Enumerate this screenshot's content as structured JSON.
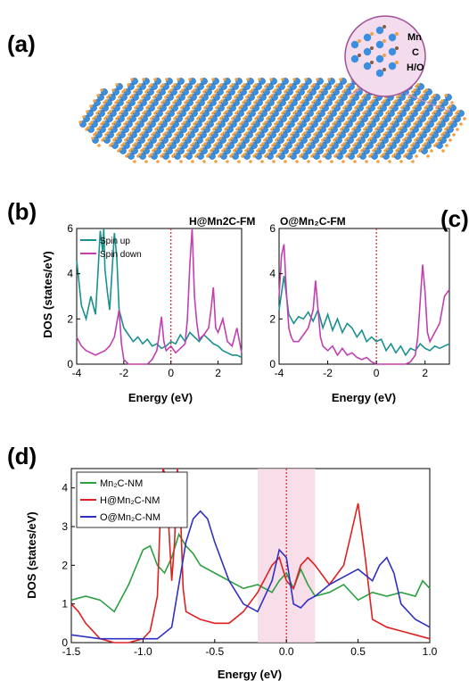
{
  "panel_labels": {
    "a": "(a)",
    "b": "(b)",
    "c": "(c)",
    "d": "(d)"
  },
  "inset_labels": {
    "mn": "Mn",
    "c": "C",
    "ho": "H/O"
  },
  "colors": {
    "mn_atom": "#3a8fe0",
    "c_atom": "#8a5a3a",
    "ho_atom": "#f0a040",
    "spin_up": "#1a9090",
    "spin_down": "#c040b0",
    "mn2c": "#2aa040",
    "h_mn2c": "#e02020",
    "o_mn2c": "#3030c0",
    "fermi_line": "#e02020",
    "fermi_band": "#f4d0e0",
    "inset_bg": "#f2dcee"
  },
  "panel_b": {
    "title": "H@Mn2C-FM"
  },
  "panel_c": {
    "title": "O@Mn₂C-FM"
  },
  "panel_d": {
    "legend": [
      "Mn₂C-NM",
      "H@Mn₂C-NM",
      "O@Mn₂C-NM"
    ]
  },
  "chart_data": [
    {
      "type": "line",
      "title": "H@Mn2C-FM",
      "xlabel": "Energy (eV)",
      "ylabel": "DOS (states/eV)",
      "xlim": [
        -4,
        3
      ],
      "ylim": [
        0,
        6
      ],
      "xticks": [
        "-4",
        "-2",
        "0",
        "2"
      ],
      "yticks": [
        "0",
        "2",
        "4",
        "6"
      ],
      "legend": "top-left",
      "series": [
        {
          "name": "Spin up",
          "x": [
            -4,
            -3.8,
            -3.6,
            -3.4,
            -3.2,
            -3.1,
            -3.0,
            -2.9,
            -2.85,
            -2.8,
            -2.7,
            -2.6,
            -2.4,
            -2.3,
            -2.2,
            -2.0,
            -1.8,
            -1.6,
            -1.4,
            -1.2,
            -1.0,
            -0.8,
            -0.6,
            -0.4,
            -0.2,
            0,
            0.2,
            0.4,
            0.6,
            0.8,
            1.0,
            1.2,
            1.4,
            1.6,
            1.8,
            2.0,
            2.2,
            2.4,
            2.6,
            2.8,
            3.0
          ],
          "y": [
            4.6,
            2.6,
            2.0,
            3.0,
            2.2,
            4.0,
            5.9,
            5.0,
            6.0,
            4.2,
            3.2,
            2.4,
            5.8,
            4.8,
            2.4,
            1.6,
            1.3,
            1.0,
            1.2,
            0.9,
            1.1,
            0.8,
            0.9,
            0.7,
            0.8,
            1.0,
            0.9,
            1.3,
            1.0,
            1.4,
            1.2,
            1.0,
            1.3,
            1.1,
            0.9,
            0.8,
            0.6,
            0.5,
            0.4,
            0.4,
            0.3
          ]
        },
        {
          "name": "Spin down",
          "x": [
            -4,
            -3.8,
            -3.6,
            -3.4,
            -3.2,
            -3.0,
            -2.8,
            -2.6,
            -2.4,
            -2.3,
            -2.2,
            -2.1,
            -2.0,
            -1.8,
            -1.6,
            -1.4,
            -1.2,
            -1.0,
            -0.8,
            -0.6,
            -0.5,
            -0.4,
            -0.3,
            -0.2,
            0,
            0.2,
            0.4,
            0.6,
            0.7,
            0.8,
            0.9,
            1.0,
            1.1,
            1.2,
            1.4,
            1.6,
            1.7,
            1.8,
            1.9,
            2.0,
            2.2,
            2.4,
            2.6,
            2.8,
            3.0
          ],
          "y": [
            1.2,
            0.8,
            0.6,
            0.5,
            0.4,
            0.5,
            0.6,
            0.8,
            1.2,
            1.8,
            2.4,
            0.9,
            0.2,
            0.0,
            0.0,
            0.0,
            0.0,
            0.0,
            0.2,
            0.6,
            1.3,
            2.1,
            1.0,
            0.6,
            0.8,
            0.5,
            0.7,
            0.9,
            2.0,
            4.4,
            6.0,
            3.0,
            1.8,
            1.1,
            1.3,
            1.6,
            2.4,
            3.4,
            1.6,
            1.4,
            2.0,
            1.0,
            0.8,
            1.6,
            0.5
          ]
        }
      ]
    },
    {
      "type": "line",
      "title": "O@Mn₂C-FM",
      "xlabel": "Energy (eV)",
      "ylabel": "",
      "xlim": [
        -4,
        3
      ],
      "ylim": [
        0,
        6
      ],
      "xticks": [
        "-4",
        "-2",
        "0",
        "2"
      ],
      "yticks": [
        "0",
        "2",
        "4",
        "6"
      ],
      "series": [
        {
          "name": "Spin up",
          "x": [
            -4,
            -3.8,
            -3.6,
            -3.4,
            -3.2,
            -3.0,
            -2.8,
            -2.6,
            -2.4,
            -2.2,
            -2.0,
            -1.8,
            -1.6,
            -1.4,
            -1.2,
            -1.0,
            -0.8,
            -0.6,
            -0.4,
            -0.2,
            0,
            0.2,
            0.4,
            0.6,
            0.8,
            1.0,
            1.2,
            1.4,
            1.6,
            1.8,
            2.0,
            2.2,
            2.4,
            2.6,
            2.8,
            3.0
          ],
          "y": [
            2.4,
            3.9,
            2.2,
            1.8,
            2.1,
            2.0,
            2.3,
            1.9,
            2.4,
            1.6,
            2.2,
            1.5,
            2.0,
            1.4,
            1.8,
            1.6,
            1.2,
            1.5,
            1.0,
            1.2,
            1.0,
            1.1,
            0.6,
            0.9,
            0.5,
            0.8,
            0.4,
            0.7,
            0.6,
            0.9,
            0.7,
            0.6,
            0.8,
            0.7,
            0.8,
            0.9
          ]
        },
        {
          "name": "Spin down",
          "x": [
            -4,
            -3.9,
            -3.8,
            -3.7,
            -3.6,
            -3.5,
            -3.4,
            -3.2,
            -3.0,
            -2.8,
            -2.6,
            -2.5,
            -2.4,
            -2.3,
            -2.2,
            -2.0,
            -1.8,
            -1.6,
            -1.4,
            -1.2,
            -1.0,
            -0.8,
            -0.6,
            -0.4,
            -0.2,
            0,
            0.4,
            0.8,
            1.2,
            1.4,
            1.6,
            1.7,
            1.8,
            1.9,
            2.0,
            2.1,
            2.2,
            2.4,
            2.6,
            2.8,
            3.0
          ],
          "y": [
            3.0,
            4.8,
            5.3,
            3.2,
            1.6,
            1.2,
            1.0,
            1.0,
            1.3,
            1.6,
            2.4,
            3.7,
            2.4,
            1.2,
            0.8,
            0.6,
            0.8,
            0.4,
            0.7,
            0.4,
            0.5,
            0.3,
            0.2,
            0.3,
            0.1,
            0.0,
            0.0,
            0.0,
            0.0,
            0.1,
            0.4,
            1.2,
            2.8,
            4.4,
            3.2,
            1.4,
            1.0,
            1.4,
            1.8,
            3.0,
            3.3
          ]
        }
      ]
    },
    {
      "type": "line",
      "title": "",
      "xlabel": "Energy (eV)",
      "ylabel": "DOS (states/eV)",
      "xlim": [
        -1.5,
        1.0
      ],
      "ylim": [
        0,
        4.5
      ],
      "xticks": [
        "-1.5",
        "-1.0",
        "-0.5",
        "0.0",
        "0.5",
        "1.0"
      ],
      "yticks": [
        "0",
        "1",
        "2",
        "3",
        "4"
      ],
      "fermi_band": [
        -0.2,
        0.2
      ],
      "legend": "top-left",
      "series": [
        {
          "name": "Mn₂C-NM",
          "x": [
            -1.5,
            -1.4,
            -1.3,
            -1.2,
            -1.1,
            -1.0,
            -0.95,
            -0.9,
            -0.85,
            -0.8,
            -0.75,
            -0.7,
            -0.65,
            -0.6,
            -0.5,
            -0.4,
            -0.3,
            -0.2,
            -0.1,
            -0.05,
            0.0,
            0.05,
            0.1,
            0.15,
            0.2,
            0.3,
            0.4,
            0.5,
            0.6,
            0.7,
            0.8,
            0.9,
            0.95,
            1.0
          ],
          "y": [
            1.1,
            1.2,
            1.1,
            0.8,
            1.5,
            2.4,
            2.5,
            2.0,
            1.8,
            2.2,
            2.8,
            2.5,
            2.3,
            2.0,
            1.8,
            1.6,
            1.4,
            1.5,
            1.3,
            1.6,
            1.8,
            1.4,
            1.9,
            1.5,
            1.2,
            1.3,
            1.5,
            1.1,
            1.3,
            1.2,
            1.3,
            1.2,
            1.6,
            1.4
          ]
        },
        {
          "name": "H@Mn₂C-NM",
          "x": [
            -1.5,
            -1.45,
            -1.4,
            -1.3,
            -1.2,
            -1.1,
            -1.0,
            -0.95,
            -0.9,
            -0.88,
            -0.86,
            -0.84,
            -0.82,
            -0.8,
            -0.78,
            -0.76,
            -0.74,
            -0.72,
            -0.7,
            -0.65,
            -0.6,
            -0.5,
            -0.4,
            -0.3,
            -0.2,
            -0.1,
            -0.05,
            0.0,
            0.05,
            0.1,
            0.15,
            0.2,
            0.3,
            0.4,
            0.45,
            0.5,
            0.55,
            0.6,
            0.7,
            0.8,
            0.9,
            1.0
          ],
          "y": [
            1.0,
            0.8,
            0.5,
            0.1,
            0.0,
            0.0,
            0.1,
            0.3,
            1.2,
            3.2,
            4.5,
            4.3,
            3.0,
            1.6,
            2.6,
            4.5,
            3.5,
            1.4,
            0.8,
            0.7,
            0.6,
            0.5,
            0.5,
            0.8,
            1.3,
            2.0,
            2.2,
            1.6,
            1.4,
            2.0,
            2.2,
            2.0,
            1.5,
            2.0,
            2.8,
            3.6,
            2.2,
            0.6,
            0.4,
            0.3,
            0.2,
            0.1
          ]
        },
        {
          "name": "O@Mn₂C-NM",
          "x": [
            -1.5,
            -1.3,
            -1.1,
            -1.0,
            -0.9,
            -0.8,
            -0.75,
            -0.7,
            -0.65,
            -0.6,
            -0.55,
            -0.5,
            -0.4,
            -0.3,
            -0.2,
            -0.1,
            -0.05,
            0.0,
            0.05,
            0.1,
            0.15,
            0.2,
            0.3,
            0.4,
            0.5,
            0.6,
            0.65,
            0.7,
            0.75,
            0.8,
            0.9,
            1.0
          ],
          "y": [
            0.2,
            0.1,
            0.1,
            0.1,
            0.1,
            0.4,
            1.5,
            2.6,
            3.2,
            3.4,
            3.2,
            2.6,
            1.6,
            1.0,
            0.8,
            1.6,
            2.4,
            2.2,
            1.0,
            0.9,
            1.1,
            1.2,
            1.5,
            1.7,
            1.9,
            1.6,
            2.0,
            2.2,
            1.8,
            1.0,
            0.6,
            0.4
          ]
        }
      ]
    }
  ]
}
